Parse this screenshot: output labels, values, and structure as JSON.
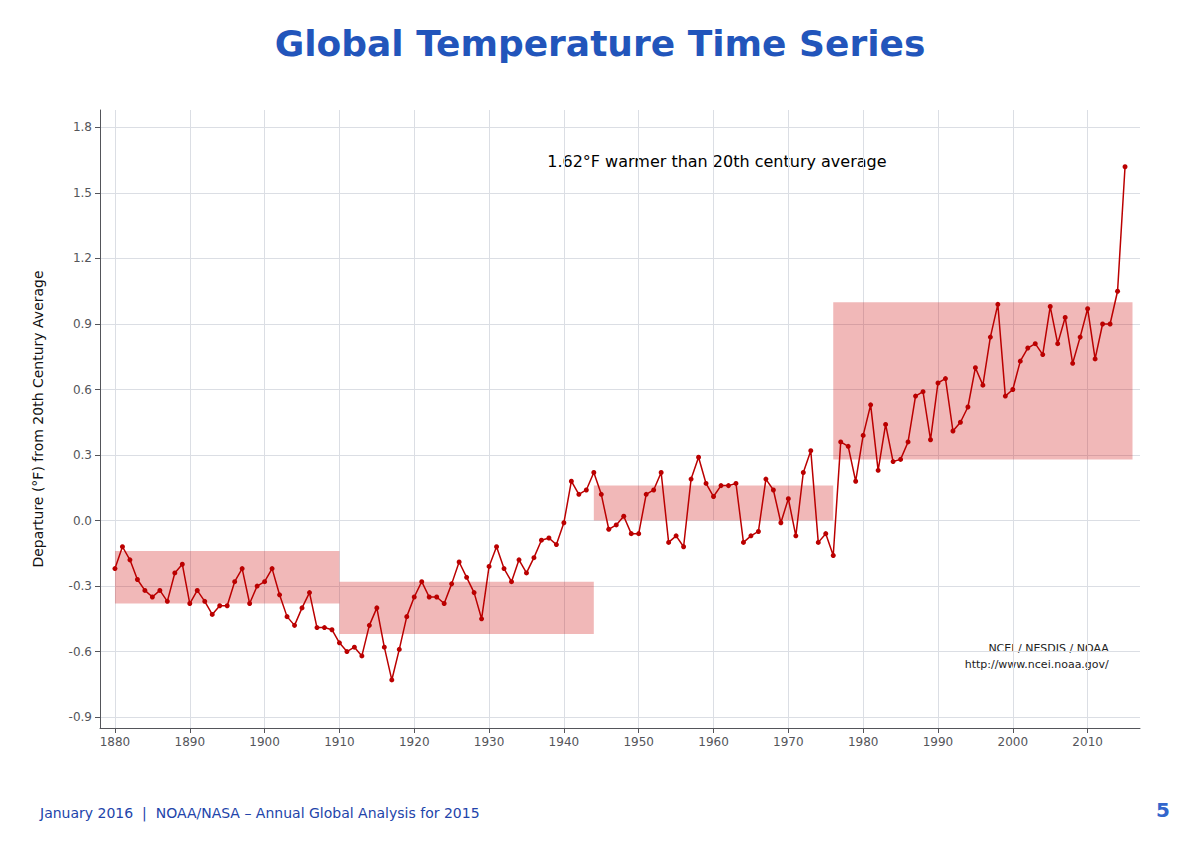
{
  "chart_data": {
    "type": "line",
    "title": "Global Temperature Time Series",
    "y_label": "Departure (°F) from 20th Century Average",
    "annotations": [
      "1.62°F warmer than 20th century average",
      "NCEI / NESDIS / NOAA\nhttp://www.ncei.noaa.gov/",
      "January 2016  |  NOAA/NASA – Annual Global Analysis for 2015",
      "5"
    ],
    "color": "#bb0000",
    "marker": "circle",
    "grid": true,
    "xlim": [
      1878,
      2017
    ],
    "ylim": [
      -0.95,
      1.88
    ],
    "xticks": [
      1880,
      1890,
      1900,
      1910,
      1920,
      1930,
      1940,
      1950,
      1960,
      1970,
      1980,
      1990,
      2000,
      2010
    ],
    "yticks": [
      -0.9,
      -0.6,
      -0.3,
      {
        "value": 0.0,
        "label": "0.0"
      },
      0.3,
      0.6,
      0.9,
      1.2,
      1.5,
      1.8
    ],
    "x": [
      1880,
      1881,
      1882,
      1883,
      1884,
      1885,
      1886,
      1887,
      1888,
      1889,
      1890,
      1891,
      1892,
      1893,
      1894,
      1895,
      1896,
      1897,
      1898,
      1899,
      1900,
      1901,
      1902,
      1903,
      1904,
      1905,
      1906,
      1907,
      1908,
      1909,
      1910,
      1911,
      1912,
      1913,
      1914,
      1915,
      1916,
      1917,
      1918,
      1919,
      1920,
      1921,
      1922,
      1923,
      1924,
      1925,
      1926,
      1927,
      1928,
      1929,
      1930,
      1931,
      1932,
      1933,
      1934,
      1935,
      1936,
      1937,
      1938,
      1939,
      1940,
      1941,
      1942,
      1943,
      1944,
      1945,
      1946,
      1947,
      1948,
      1949,
      1950,
      1951,
      1952,
      1953,
      1954,
      1955,
      1956,
      1957,
      1958,
      1959,
      1960,
      1961,
      1962,
      1963,
      1964,
      1965,
      1966,
      1967,
      1968,
      1969,
      1970,
      1971,
      1972,
      1973,
      1974,
      1975,
      1976,
      1977,
      1978,
      1979,
      1980,
      1981,
      1982,
      1983,
      1984,
      1985,
      1986,
      1987,
      1988,
      1989,
      1990,
      1991,
      1992,
      1993,
      1994,
      1995,
      1996,
      1997,
      1998,
      1999,
      2000,
      2001,
      2002,
      2003,
      2004,
      2005,
      2006,
      2007,
      2008,
      2009,
      2010,
      2011,
      2012,
      2013,
      2014,
      2015
    ],
    "values": [
      -0.22,
      -0.12,
      -0.18,
      -0.27,
      -0.32,
      -0.35,
      -0.32,
      -0.37,
      -0.24,
      -0.2,
      -0.38,
      -0.32,
      -0.37,
      -0.43,
      -0.39,
      -0.39,
      -0.28,
      -0.22,
      -0.38,
      -0.3,
      -0.28,
      -0.22,
      -0.34,
      -0.44,
      -0.48,
      -0.4,
      -0.33,
      -0.49,
      -0.49,
      -0.5,
      -0.56,
      -0.6,
      -0.58,
      -0.62,
      -0.48,
      -0.4,
      -0.58,
      -0.73,
      -0.59,
      -0.44,
      -0.35,
      -0.28,
      -0.35,
      -0.35,
      -0.38,
      -0.29,
      -0.19,
      -0.26,
      -0.33,
      -0.45,
      -0.21,
      -0.12,
      -0.22,
      -0.28,
      -0.18,
      -0.24,
      -0.17,
      -0.09,
      -0.08,
      -0.11,
      -0.01,
      0.18,
      0.12,
      0.14,
      0.22,
      0.12,
      -0.04,
      -0.02,
      0.02,
      -0.06,
      -0.06,
      0.12,
      0.14,
      0.22,
      -0.1,
      -0.07,
      -0.12,
      0.19,
      0.29,
      0.17,
      0.11,
      0.16,
      0.16,
      0.17,
      -0.1,
      -0.07,
      -0.05,
      0.19,
      0.14,
      -0.01,
      0.1,
      -0.07,
      0.22,
      0.32,
      -0.1,
      -0.06,
      -0.16,
      0.36,
      0.34,
      0.18,
      0.39,
      0.53,
      0.23,
      0.44,
      0.27,
      0.28,
      0.36,
      0.57,
      0.59,
      0.37,
      0.63,
      0.65,
      0.41,
      0.45,
      0.52,
      0.7,
      0.62,
      0.84,
      0.99,
      0.57,
      0.6,
      0.73,
      0.79,
      0.81,
      0.76,
      0.98,
      0.81,
      0.93,
      0.72,
      0.84,
      0.97,
      0.74,
      0.9,
      0.9,
      1.05,
      1.62
    ],
    "bands": {
      "color": "#cc0000",
      "ranges": [
        {
          "x0": 1880,
          "x1": 1910,
          "y0": -0.38,
          "y1": -0.14
        },
        {
          "x0": 1910,
          "x1": 1944,
          "y0": -0.52,
          "y1": -0.28
        },
        {
          "x0": 1944,
          "x1": 1976,
          "y0": 0.0,
          "y1": 0.16
        },
        {
          "x0": 1976,
          "x1": 2016,
          "y0": 0.28,
          "y1": 1.0
        }
      ]
    }
  }
}
